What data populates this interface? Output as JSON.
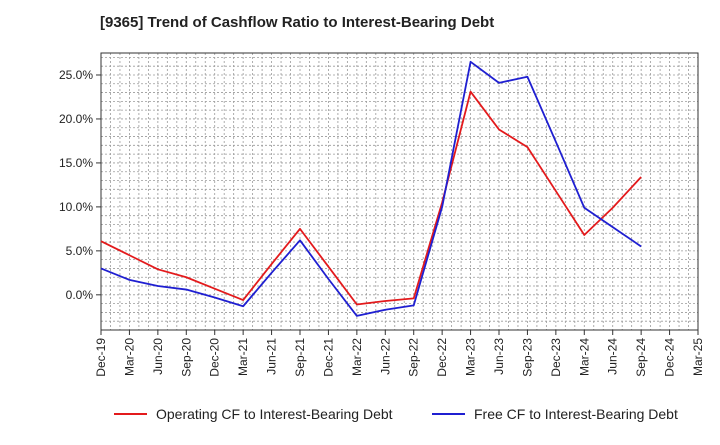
{
  "chart_data": {
    "type": "line",
    "title": "[9365]  Trend of Cashflow Ratio to Interest-Bearing Debt",
    "xlabel": "",
    "ylabel": "",
    "categories": [
      "Dec-19",
      "Mar-20",
      "Jun-20",
      "Sep-20",
      "Dec-20",
      "Mar-21",
      "Jun-21",
      "Sep-21",
      "Dec-21",
      "Mar-22",
      "Jun-22",
      "Sep-22",
      "Dec-22",
      "Mar-23",
      "Jun-23",
      "Sep-23",
      "Dec-23",
      "Mar-24",
      "Jun-24",
      "Sep-24",
      "Dec-24",
      "Mar-25"
    ],
    "y_ticks": [
      0,
      5,
      10,
      15,
      20,
      25
    ],
    "y_tick_labels": [
      "0.0%",
      "5.0%",
      "10.0%",
      "15.0%",
      "20.0%",
      "25.0%"
    ],
    "ylim": [
      -4,
      27.5
    ],
    "grid": true,
    "legend_position": "bottom",
    "series": [
      {
        "name": "Operating CF to Interest-Bearing Debt",
        "color": "#e31a1c",
        "values": [
          6.1,
          4.5,
          2.9,
          2.0,
          0.7,
          -0.6,
          3.5,
          7.5,
          3.2,
          -1.1,
          -0.7,
          -0.4,
          10.5,
          23.1,
          18.8,
          16.8,
          11.8,
          6.8,
          9.9,
          13.4,
          null,
          null
        ]
      },
      {
        "name": "Free CF to Interest-Bearing Debt",
        "color": "#1f1fd1",
        "values": [
          3.0,
          1.7,
          1.0,
          0.6,
          -0.3,
          -1.3,
          2.5,
          6.2,
          1.8,
          -2.4,
          -1.7,
          -1.2,
          10.0,
          26.5,
          24.1,
          24.8,
          17.4,
          9.9,
          7.7,
          5.5,
          null,
          null
        ]
      }
    ]
  }
}
